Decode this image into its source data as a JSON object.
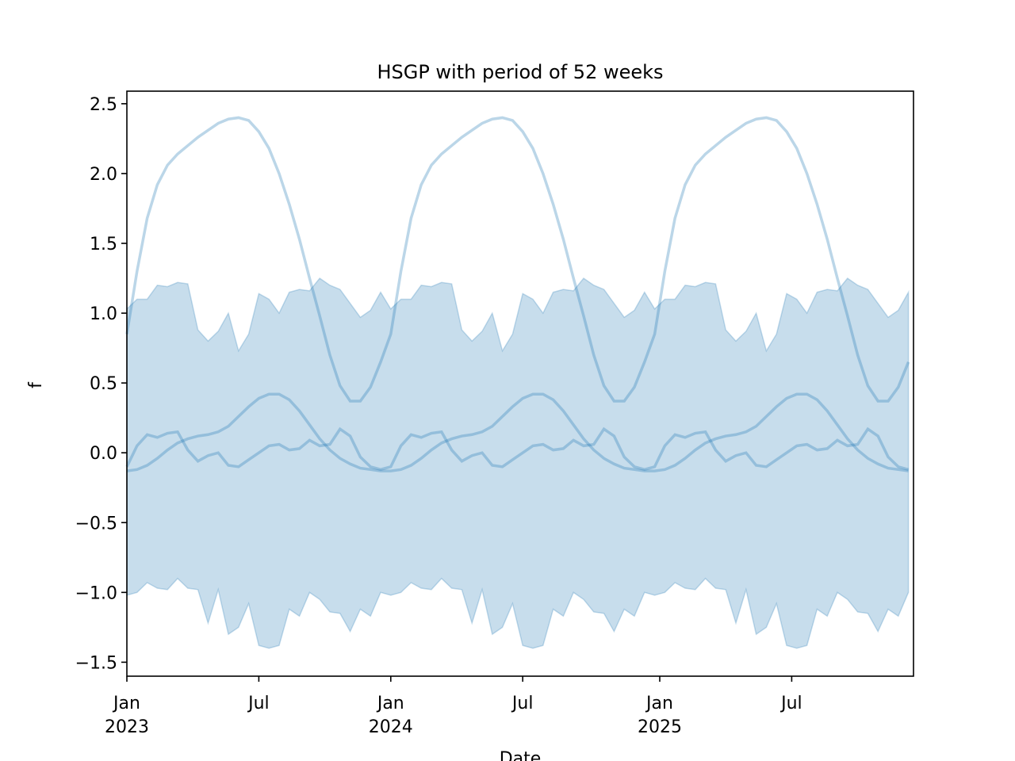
{
  "chart_data": {
    "type": "line",
    "title": "HSGP with period of 52 weeks",
    "x_label": "Date",
    "y_label": "f",
    "x": [
      0,
      2,
      4,
      6,
      8,
      10,
      12,
      14,
      16,
      18,
      20,
      22,
      24,
      26,
      28,
      30,
      32,
      34,
      36,
      38,
      40,
      42,
      44,
      46,
      48,
      50,
      52,
      54,
      56,
      58,
      60,
      62,
      64,
      66,
      68,
      70,
      72,
      74,
      76,
      78,
      80,
      82,
      84,
      86,
      88,
      90,
      92,
      94,
      96,
      98,
      100,
      102,
      104,
      106,
      108,
      110,
      112,
      114,
      116,
      118,
      120,
      122,
      124,
      126,
      128,
      130,
      132,
      134,
      136,
      138,
      140,
      142,
      144,
      146,
      148,
      150,
      152,
      154
    ],
    "band": {
      "color": "#1f77b4",
      "upper": [
        1.03,
        1.1,
        1.1,
        1.2,
        1.19,
        1.22,
        1.21,
        0.88,
        0.8,
        0.87,
        1.0,
        0.73,
        0.85,
        1.14,
        1.1,
        1.0,
        1.15,
        1.17,
        1.16,
        1.25,
        1.2,
        1.17,
        1.07,
        0.97,
        1.02,
        1.15,
        1.03,
        1.1,
        1.1,
        1.2,
        1.19,
        1.22,
        1.21,
        0.88,
        0.8,
        0.87,
        1.0,
        0.73,
        0.85,
        1.14,
        1.1,
        1.0,
        1.15,
        1.17,
        1.16,
        1.25,
        1.2,
        1.17,
        1.07,
        0.97,
        1.02,
        1.15,
        1.03,
        1.1,
        1.1,
        1.2,
        1.19,
        1.22,
        1.21,
        0.88,
        0.8,
        0.87,
        1.0,
        0.73,
        0.85,
        1.14,
        1.1,
        1.0,
        1.15,
        1.17,
        1.16,
        1.25,
        1.2,
        1.17,
        1.07,
        0.97,
        1.02,
        1.15
      ],
      "lower": [
        -1.02,
        -1.0,
        -0.93,
        -0.97,
        -0.98,
        -0.9,
        -0.97,
        -0.98,
        -1.22,
        -0.98,
        -1.3,
        -1.25,
        -1.08,
        -1.38,
        -1.4,
        -1.38,
        -1.12,
        -1.17,
        -1.0,
        -1.05,
        -1.14,
        -1.15,
        -1.28,
        -1.12,
        -1.17,
        -1.0,
        -1.02,
        -1.0,
        -0.93,
        -0.97,
        -0.98,
        -0.9,
        -0.97,
        -0.98,
        -1.22,
        -0.98,
        -1.3,
        -1.25,
        -1.08,
        -1.38,
        -1.4,
        -1.38,
        -1.12,
        -1.17,
        -1.0,
        -1.05,
        -1.14,
        -1.15,
        -1.28,
        -1.12,
        -1.17,
        -1.0,
        -1.02,
        -1.0,
        -0.93,
        -0.97,
        -0.98,
        -0.9,
        -0.97,
        -0.98,
        -1.22,
        -0.98,
        -1.3,
        -1.25,
        -1.08,
        -1.38,
        -1.4,
        -1.38,
        -1.12,
        -1.17,
        -1.0,
        -1.05,
        -1.14,
        -1.15,
        -1.28,
        -1.12,
        -1.17,
        -1.0
      ]
    },
    "series": [
      {
        "color": "#1f77b4",
        "values": [
          0.85,
          1.3,
          1.68,
          1.92,
          2.06,
          2.14,
          2.2,
          2.26,
          2.31,
          2.36,
          2.39,
          2.4,
          2.38,
          2.3,
          2.18,
          2.0,
          1.78,
          1.53,
          1.25,
          0.98,
          0.7,
          0.48,
          0.37,
          0.37,
          0.47,
          0.65,
          0.85,
          1.3,
          1.68,
          1.92,
          2.06,
          2.14,
          2.2,
          2.26,
          2.31,
          2.36,
          2.39,
          2.4,
          2.38,
          2.3,
          2.18,
          2.0,
          1.78,
          1.53,
          1.25,
          0.98,
          0.7,
          0.48,
          0.37,
          0.37,
          0.47,
          0.65,
          0.85,
          1.3,
          1.68,
          1.92,
          2.06,
          2.14,
          2.2,
          2.26,
          2.31,
          2.36,
          2.39,
          2.4,
          2.38,
          2.3,
          2.18,
          2.0,
          1.78,
          1.53,
          1.25,
          0.98,
          0.7,
          0.48,
          0.37,
          0.37,
          0.47,
          0.65
        ]
      },
      {
        "color": "#1f77b4",
        "values": [
          -0.13,
          -0.12,
          -0.09,
          -0.04,
          0.02,
          0.07,
          0.1,
          0.12,
          0.13,
          0.15,
          0.19,
          0.26,
          0.33,
          0.39,
          0.42,
          0.42,
          0.38,
          0.3,
          0.2,
          0.1,
          0.02,
          -0.04,
          -0.08,
          -0.11,
          -0.12,
          -0.13,
          -0.13,
          -0.12,
          -0.09,
          -0.04,
          0.02,
          0.07,
          0.1,
          0.12,
          0.13,
          0.15,
          0.19,
          0.26,
          0.33,
          0.39,
          0.42,
          0.42,
          0.38,
          0.3,
          0.2,
          0.1,
          0.02,
          -0.04,
          -0.08,
          -0.11,
          -0.12,
          -0.13,
          -0.13,
          -0.12,
          -0.09,
          -0.04,
          0.02,
          0.07,
          0.1,
          0.12,
          0.13,
          0.15,
          0.19,
          0.26,
          0.33,
          0.39,
          0.42,
          0.42,
          0.38,
          0.3,
          0.2,
          0.1,
          0.02,
          -0.04,
          -0.08,
          -0.11,
          -0.12,
          -0.13
        ]
      },
      {
        "color": "#1f77b4",
        "values": [
          -0.1,
          0.05,
          0.13,
          0.11,
          0.14,
          0.15,
          0.02,
          -0.06,
          -0.02,
          0.0,
          -0.09,
          -0.1,
          -0.05,
          0.0,
          0.05,
          0.06,
          0.02,
          0.03,
          0.09,
          0.05,
          0.06,
          0.17,
          0.12,
          -0.03,
          -0.1,
          -0.12,
          -0.1,
          0.05,
          0.13,
          0.11,
          0.14,
          0.15,
          0.02,
          -0.06,
          -0.02,
          0.0,
          -0.09,
          -0.1,
          -0.05,
          0.0,
          0.05,
          0.06,
          0.02,
          0.03,
          0.09,
          0.05,
          0.06,
          0.17,
          0.12,
          -0.03,
          -0.1,
          -0.12,
          -0.1,
          0.05,
          0.13,
          0.11,
          0.14,
          0.15,
          0.02,
          -0.06,
          -0.02,
          0.0,
          -0.09,
          -0.1,
          -0.05,
          0.0,
          0.05,
          0.06,
          0.02,
          0.03,
          0.09,
          0.05,
          0.06,
          0.17,
          0.12,
          -0.03,
          -0.1,
          -0.12
        ]
      }
    ],
    "xlim": [
      0,
      155
    ],
    "xticks": [
      {
        "value": 0,
        "label": "Jan\n2023"
      },
      {
        "value": 26,
        "label": "Jul"
      },
      {
        "value": 52,
        "label": "Jan\n2024"
      },
      {
        "value": 78,
        "label": "Jul"
      },
      {
        "value": 105,
        "label": "Jan\n2025"
      },
      {
        "value": 131,
        "label": "Jul"
      }
    ],
    "ylim": [
      -1.6,
      2.59
    ],
    "yticks": [
      {
        "value": -1.5,
        "label": "−1.5"
      },
      {
        "value": -1.0,
        "label": "−1.0"
      },
      {
        "value": -0.5,
        "label": "−0.5"
      },
      {
        "value": 0,
        "label": "0.0"
      },
      0.5,
      {
        "value": 1,
        "label": "1.0"
      },
      1.5,
      {
        "value": 2,
        "label": "2.0"
      },
      2.5
    ]
  }
}
